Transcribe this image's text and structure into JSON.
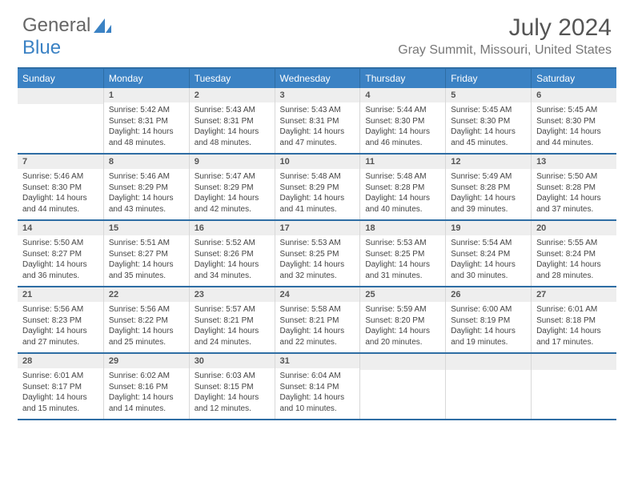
{
  "brand": {
    "part1": "General",
    "part2": "Blue"
  },
  "title": {
    "month": "July 2024",
    "location": "Gray Summit, Missouri, United States"
  },
  "colors": {
    "accent": "#3b82c4",
    "border": "#2e6da4",
    "daybg": "#eeeeee",
    "text": "#444444"
  },
  "weekdays": [
    "Sunday",
    "Monday",
    "Tuesday",
    "Wednesday",
    "Thursday",
    "Friday",
    "Saturday"
  ],
  "layout": {
    "firstDayOffset": 1,
    "daysInMonth": 31
  },
  "days": {
    "1": {
      "sunrise": "5:42 AM",
      "sunset": "8:31 PM",
      "daylight": "14 hours and 48 minutes."
    },
    "2": {
      "sunrise": "5:43 AM",
      "sunset": "8:31 PM",
      "daylight": "14 hours and 48 minutes."
    },
    "3": {
      "sunrise": "5:43 AM",
      "sunset": "8:31 PM",
      "daylight": "14 hours and 47 minutes."
    },
    "4": {
      "sunrise": "5:44 AM",
      "sunset": "8:30 PM",
      "daylight": "14 hours and 46 minutes."
    },
    "5": {
      "sunrise": "5:45 AM",
      "sunset": "8:30 PM",
      "daylight": "14 hours and 45 minutes."
    },
    "6": {
      "sunrise": "5:45 AM",
      "sunset": "8:30 PM",
      "daylight": "14 hours and 44 minutes."
    },
    "7": {
      "sunrise": "5:46 AM",
      "sunset": "8:30 PM",
      "daylight": "14 hours and 44 minutes."
    },
    "8": {
      "sunrise": "5:46 AM",
      "sunset": "8:29 PM",
      "daylight": "14 hours and 43 minutes."
    },
    "9": {
      "sunrise": "5:47 AM",
      "sunset": "8:29 PM",
      "daylight": "14 hours and 42 minutes."
    },
    "10": {
      "sunrise": "5:48 AM",
      "sunset": "8:29 PM",
      "daylight": "14 hours and 41 minutes."
    },
    "11": {
      "sunrise": "5:48 AM",
      "sunset": "8:28 PM",
      "daylight": "14 hours and 40 minutes."
    },
    "12": {
      "sunrise": "5:49 AM",
      "sunset": "8:28 PM",
      "daylight": "14 hours and 39 minutes."
    },
    "13": {
      "sunrise": "5:50 AM",
      "sunset": "8:28 PM",
      "daylight": "14 hours and 37 minutes."
    },
    "14": {
      "sunrise": "5:50 AM",
      "sunset": "8:27 PM",
      "daylight": "14 hours and 36 minutes."
    },
    "15": {
      "sunrise": "5:51 AM",
      "sunset": "8:27 PM",
      "daylight": "14 hours and 35 minutes."
    },
    "16": {
      "sunrise": "5:52 AM",
      "sunset": "8:26 PM",
      "daylight": "14 hours and 34 minutes."
    },
    "17": {
      "sunrise": "5:53 AM",
      "sunset": "8:25 PM",
      "daylight": "14 hours and 32 minutes."
    },
    "18": {
      "sunrise": "5:53 AM",
      "sunset": "8:25 PM",
      "daylight": "14 hours and 31 minutes."
    },
    "19": {
      "sunrise": "5:54 AM",
      "sunset": "8:24 PM",
      "daylight": "14 hours and 30 minutes."
    },
    "20": {
      "sunrise": "5:55 AM",
      "sunset": "8:24 PM",
      "daylight": "14 hours and 28 minutes."
    },
    "21": {
      "sunrise": "5:56 AM",
      "sunset": "8:23 PM",
      "daylight": "14 hours and 27 minutes."
    },
    "22": {
      "sunrise": "5:56 AM",
      "sunset": "8:22 PM",
      "daylight": "14 hours and 25 minutes."
    },
    "23": {
      "sunrise": "5:57 AM",
      "sunset": "8:21 PM",
      "daylight": "14 hours and 24 minutes."
    },
    "24": {
      "sunrise": "5:58 AM",
      "sunset": "8:21 PM",
      "daylight": "14 hours and 22 minutes."
    },
    "25": {
      "sunrise": "5:59 AM",
      "sunset": "8:20 PM",
      "daylight": "14 hours and 20 minutes."
    },
    "26": {
      "sunrise": "6:00 AM",
      "sunset": "8:19 PM",
      "daylight": "14 hours and 19 minutes."
    },
    "27": {
      "sunrise": "6:01 AM",
      "sunset": "8:18 PM",
      "daylight": "14 hours and 17 minutes."
    },
    "28": {
      "sunrise": "6:01 AM",
      "sunset": "8:17 PM",
      "daylight": "14 hours and 15 minutes."
    },
    "29": {
      "sunrise": "6:02 AM",
      "sunset": "8:16 PM",
      "daylight": "14 hours and 14 minutes."
    },
    "30": {
      "sunrise": "6:03 AM",
      "sunset": "8:15 PM",
      "daylight": "14 hours and 12 minutes."
    },
    "31": {
      "sunrise": "6:04 AM",
      "sunset": "8:14 PM",
      "daylight": "14 hours and 10 minutes."
    }
  },
  "labels": {
    "sunrise": "Sunrise:",
    "sunset": "Sunset:",
    "daylight": "Daylight:"
  }
}
